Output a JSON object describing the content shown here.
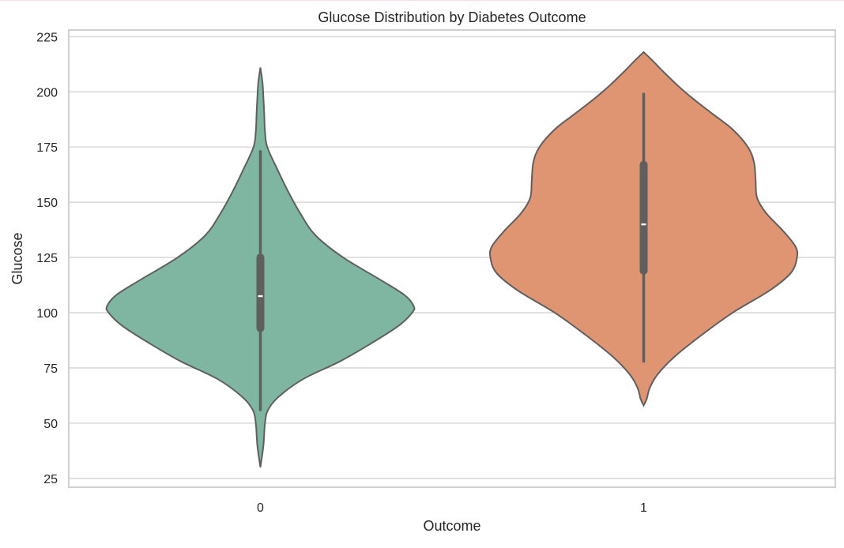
{
  "chart_data": {
    "type": "violin",
    "title": "Glucose Distribution by Diabetes Outcome",
    "xlabel": "Outcome",
    "ylabel": "Glucose",
    "ylim": [
      21,
      228
    ],
    "yticks": [
      25,
      50,
      75,
      100,
      125,
      150,
      175,
      200,
      225
    ],
    "categories": [
      "0",
      "1"
    ],
    "grid": true,
    "series": [
      {
        "category": "0",
        "color": "#7fb6a1",
        "quartiles": {
          "min": 56,
          "q1": 93,
          "median": 107.5,
          "q3": 125,
          "max": 173
        },
        "density_extent": [
          30,
          211
        ],
        "density_profile": [
          [
            30,
            0.0
          ],
          [
            40,
            0.02
          ],
          [
            50,
            0.03
          ],
          [
            56,
            0.05
          ],
          [
            62,
            0.12
          ],
          [
            70,
            0.28
          ],
          [
            78,
            0.52
          ],
          [
            86,
            0.72
          ],
          [
            94,
            0.9
          ],
          [
            100,
            0.99
          ],
          [
            103,
            1.0
          ],
          [
            108,
            0.94
          ],
          [
            115,
            0.78
          ],
          [
            125,
            0.54
          ],
          [
            135,
            0.36
          ],
          [
            145,
            0.26
          ],
          [
            155,
            0.18
          ],
          [
            165,
            0.11
          ],
          [
            175,
            0.045
          ],
          [
            182,
            0.03
          ],
          [
            190,
            0.025
          ],
          [
            197,
            0.02
          ],
          [
            204,
            0.014
          ],
          [
            211,
            0.0
          ]
        ]
      },
      {
        "category": "1",
        "color": "#e09572",
        "quartiles": {
          "min": 78,
          "q1": 119,
          "median": 140,
          "q3": 167,
          "max": 199
        },
        "density_extent": [
          58,
          218
        ],
        "density_profile": [
          [
            58,
            0.0
          ],
          [
            61,
            0.02
          ],
          [
            66,
            0.04
          ],
          [
            72,
            0.09
          ],
          [
            80,
            0.2
          ],
          [
            90,
            0.38
          ],
          [
            100,
            0.58
          ],
          [
            110,
            0.82
          ],
          [
            118,
            0.96
          ],
          [
            125,
            1.0
          ],
          [
            130,
            0.99
          ],
          [
            137,
            0.91
          ],
          [
            145,
            0.8
          ],
          [
            152,
            0.74
          ],
          [
            160,
            0.73
          ],
          [
            168,
            0.72
          ],
          [
            175,
            0.68
          ],
          [
            183,
            0.58
          ],
          [
            190,
            0.45
          ],
          [
            197,
            0.32
          ],
          [
            203,
            0.22
          ],
          [
            209,
            0.13
          ],
          [
            214,
            0.06
          ],
          [
            218,
            0.0
          ]
        ]
      }
    ]
  }
}
